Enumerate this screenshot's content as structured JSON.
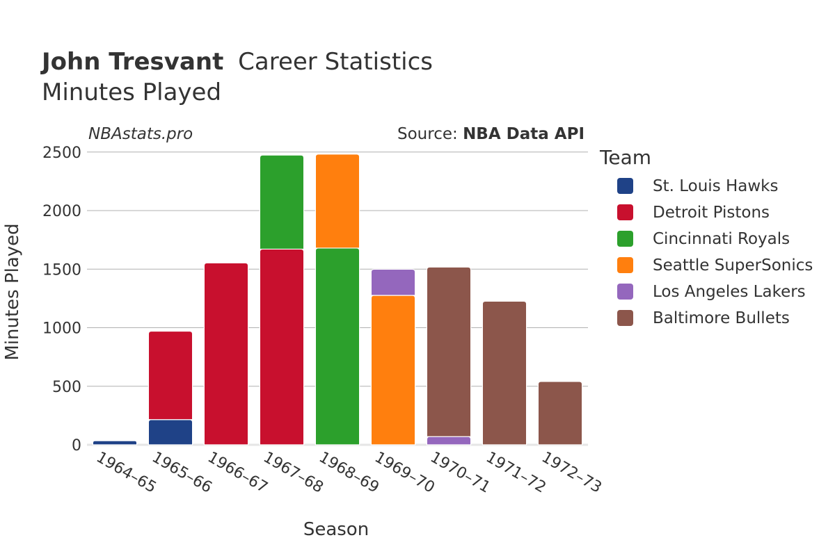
{
  "header": {
    "title_name": "John Tresvant",
    "title_rest": "Career Statistics",
    "subtitle": "Minutes Played",
    "watermark": "NBAstats.pro",
    "source_prefix": "Source: ",
    "source_name": "NBA Data API"
  },
  "legend": {
    "title": "Team"
  },
  "colors": {
    "St. Louis Hawks": "#1f4287",
    "Detroit Pistons": "#c8102e",
    "Cincinnati Royals": "#2ca02c",
    "Seattle SuperSonics": "#ff7f0e",
    "Los Angeles Lakers": "#9467bd",
    "Baltimore Bullets": "#8c564b"
  },
  "chart_data": {
    "type": "bar",
    "stacked": true,
    "title": "John Tresvant Career Statistics",
    "subtitle": "Minutes Played",
    "xlabel": "Season",
    "ylabel": "Minutes Played",
    "ylim": [
      0,
      2600
    ],
    "yticks": [
      0,
      500,
      1000,
      1500,
      2000,
      2500
    ],
    "grid": true,
    "legend_position": "right",
    "categories": [
      "1964–65",
      "1965–66",
      "1966–67",
      "1967–68",
      "1968–69",
      "1969–70",
      "1970–71",
      "1971–72",
      "1972–73"
    ],
    "series": [
      {
        "name": "St. Louis Hawks",
        "values": [
          35,
          215,
          0,
          0,
          0,
          0,
          0,
          0,
          0
        ]
      },
      {
        "name": "Detroit Pistons",
        "values": [
          0,
          755,
          1553,
          1671,
          0,
          0,
          0,
          0,
          0
        ]
      },
      {
        "name": "Cincinnati Royals",
        "values": [
          0,
          0,
          0,
          803,
          1680,
          0,
          0,
          0,
          0
        ]
      },
      {
        "name": "Seattle SuperSonics",
        "values": [
          0,
          0,
          0,
          0,
          802,
          1276,
          0,
          0,
          0
        ]
      },
      {
        "name": "Los Angeles Lakers",
        "values": [
          0,
          0,
          0,
          0,
          0,
          223,
          70,
          0,
          0
        ]
      },
      {
        "name": "Baltimore Bullets",
        "values": [
          0,
          0,
          0,
          0,
          0,
          0,
          1448,
          1226,
          541
        ]
      }
    ]
  }
}
